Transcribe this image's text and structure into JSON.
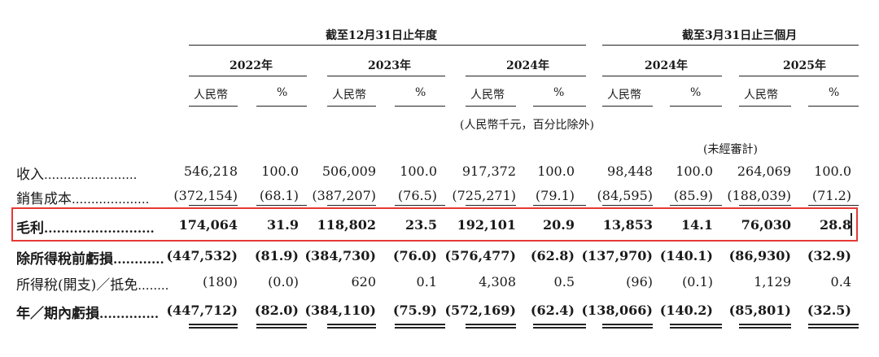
{
  "header": {
    "group_year": "截至12月31日止年度",
    "group_quarter": "截至3月31日止三個月",
    "years": [
      "2022年",
      "2023年",
      "2024年",
      "2024年",
      "2025年"
    ],
    "rmb_label": "人民幣",
    "pct_label": "%",
    "unit_note": "(人民幣千元，百分比除外)",
    "unaudited_note": "(未經審計)"
  },
  "rows": [
    {
      "label": "收入",
      "dots": "........................",
      "bold": false,
      "values": [
        "546,218",
        "100.0",
        "506,009",
        "100.0",
        "917,372",
        "100.0",
        "98,448",
        "100.0",
        "264,069",
        "100.0"
      ]
    },
    {
      "label": "銷售成本",
      "dots": "....................",
      "bold": false,
      "values": [
        "(372,154)",
        "(68.1)",
        "(387,207)",
        "(76.5)",
        "(725,271)",
        "(79.1)",
        "(84,595)",
        "(85.9)",
        "(188,039)",
        "(71.2)"
      ]
    },
    {
      "label": "毛利",
      "dots": "..........................",
      "bold": true,
      "values": [
        "174,064",
        "31.9",
        "118,802",
        "23.5",
        "192,101",
        "20.9",
        "13,853",
        "14.1",
        "76,030",
        "28.8"
      ]
    },
    {
      "label": "除所得稅前虧損",
      "dots": "............",
      "bold": true,
      "values": [
        "(447,532)",
        "(81.9)",
        "(384,730)",
        "(76.0)",
        "(576,477)",
        "(62.8)",
        "(137,970)",
        "(140.1)",
        "(86,930)",
        "(32.9)"
      ]
    },
    {
      "label": "所得稅(開支)／抵免",
      "dots": "........",
      "bold": false,
      "values": [
        "(180)",
        "(0.0)",
        "620",
        "0.1",
        "4,308",
        "0.5",
        "(96)",
        "(0.1)",
        "1,129",
        "0.4"
      ]
    },
    {
      "label": "年／期內虧損",
      "dots": "..............",
      "bold": true,
      "values": [
        "(447,712)",
        "(82.0)",
        "(384,110)",
        "(75.9)",
        "(572,169)",
        "(62.4)",
        "(138,066)",
        "(140.2)",
        "(85,801)",
        "(32.5)"
      ]
    }
  ]
}
